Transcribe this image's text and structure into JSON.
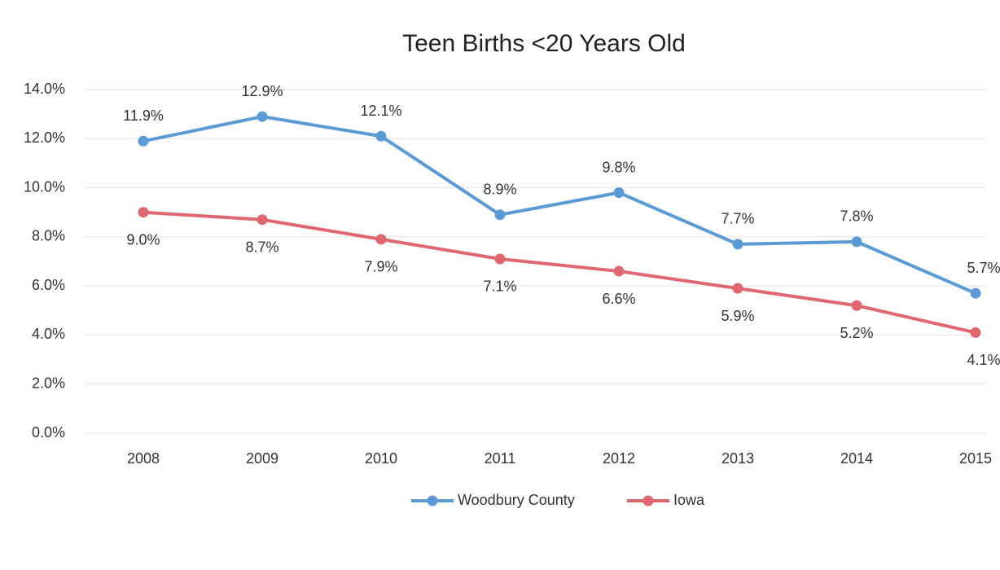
{
  "chart_data": {
    "type": "line",
    "title": "Teen Births <20 Years Old",
    "categories": [
      "2008",
      "2009",
      "2010",
      "2011",
      "2012",
      "2013",
      "2014",
      "2015"
    ],
    "series": [
      {
        "name": "Woodbury County",
        "color": "#5b9bd5",
        "values": [
          11.9,
          12.9,
          12.1,
          8.9,
          9.8,
          7.7,
          7.8,
          5.7
        ],
        "value_labels": [
          "11.9%",
          "12.9%",
          "12.1%",
          "8.9%",
          "9.8%",
          "7.7%",
          "7.8%",
          "5.7%"
        ]
      },
      {
        "name": "Iowa",
        "color": "#e06670",
        "values": [
          9.0,
          8.7,
          7.9,
          7.1,
          6.6,
          5.9,
          5.2,
          4.1
        ],
        "value_labels": [
          "9.0%",
          "8.7%",
          "7.9%",
          "7.1%",
          "6.6%",
          "5.9%",
          "5.2%",
          "4.1%"
        ]
      }
    ],
    "ylim": [
      0,
      14
    ],
    "yticks": [
      {
        "value": 0,
        "label": "0.0%"
      },
      {
        "value": 2,
        "label": "2.0%"
      },
      {
        "value": 4,
        "label": "4.0%"
      },
      {
        "value": 6,
        "label": "6.0%"
      },
      {
        "value": 8,
        "label": "8.0%"
      },
      {
        "value": 10,
        "label": "10.0%"
      },
      {
        "value": 12,
        "label": "12.0%"
      },
      {
        "value": 14,
        "label": "14.0%"
      }
    ],
    "grid": true,
    "legend": "bottom"
  }
}
